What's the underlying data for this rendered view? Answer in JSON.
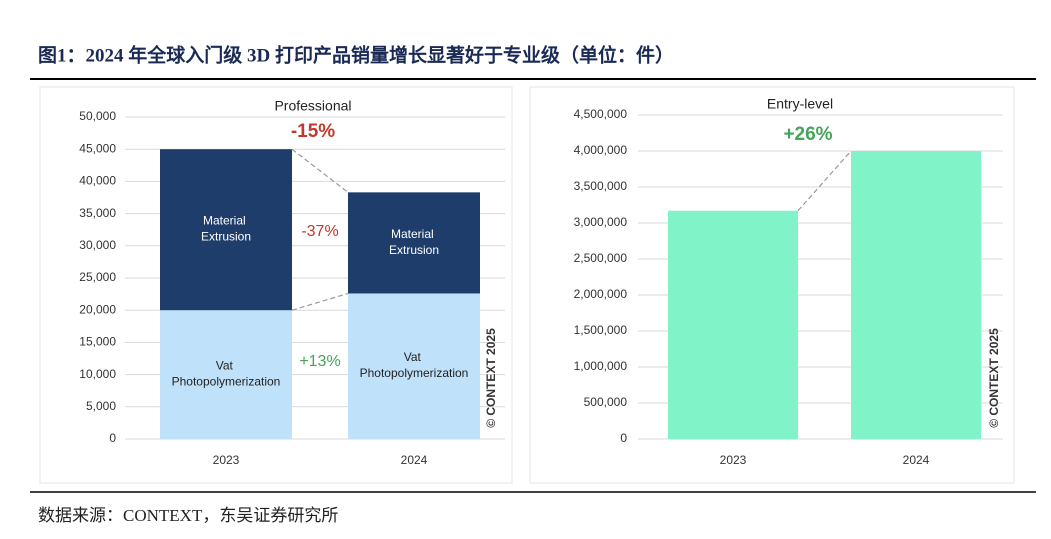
{
  "header": {
    "title": "图1：2024 年全球入门级 3D 打印产品销量增长显著好于专业级（单位：件）"
  },
  "chart_data": [
    {
      "type": "stacked_bar",
      "title": "Professional",
      "categories": [
        "2023",
        "2024"
      ],
      "series": [
        {
          "name": "Vat Photopolymerization",
          "color": "#bfe1fa",
          "values": [
            20000,
            22600
          ]
        },
        {
          "name": "Material Extrusion",
          "color": "#1f3d6b",
          "values": [
            25000,
            15700
          ]
        }
      ],
      "ylim": [
        0,
        50000
      ],
      "yticks": [
        0,
        {
          "value": 5000,
          "label": "5,000"
        },
        {
          "value": 10000,
          "label": "10,000"
        },
        {
          "value": 15000,
          "label": "15,000"
        },
        {
          "value": 20000,
          "label": "20,000"
        },
        {
          "value": 25000,
          "label": "25,000"
        },
        {
          "value": 30000,
          "label": "30,000"
        },
        {
          "value": 35000,
          "label": "35,000"
        },
        {
          "value": 40000,
          "label": "40,000"
        },
        {
          "value": 45000,
          "label": "45,000"
        },
        {
          "value": 50000,
          "label": "50,000"
        }
      ],
      "grid": true,
      "annotations": [
        {
          "text": "-15%",
          "color": "#c0392b"
        },
        {
          "text": "-37%",
          "color": "#c0392b"
        },
        {
          "text": "+13%",
          "color": "#45a35a"
        }
      ],
      "watermark": "© CONTEXT 2025"
    },
    {
      "type": "bar",
      "title": "Entry-level",
      "categories": [
        "2023",
        "2024"
      ],
      "values": [
        3170000,
        4000000
      ],
      "color": "#80f3c8",
      "ylim": [
        0,
        4500000
      ],
      "yticks": [
        0,
        {
          "value": 500000,
          "label": "500,000"
        },
        {
          "value": 1000000,
          "label": "1,000,000"
        },
        {
          "value": 1500000,
          "label": "1,500,000"
        },
        {
          "value": 2000000,
          "label": "2,000,000"
        },
        {
          "value": 2500000,
          "label": "2,500,000"
        },
        {
          "value": 3000000,
          "label": "3,000,000"
        },
        {
          "value": 3500000,
          "label": "3,500,000"
        },
        {
          "value": 4000000,
          "label": "4,000,000"
        },
        {
          "value": 4500000,
          "label": "4,500,000"
        }
      ],
      "grid": true,
      "annotations": [
        {
          "text": "+26%",
          "color": "#45a35a"
        }
      ],
      "watermark": "© CONTEXT 2025"
    }
  ],
  "footer": {
    "source": "数据来源：CONTEXT，东吴证券研究所"
  }
}
